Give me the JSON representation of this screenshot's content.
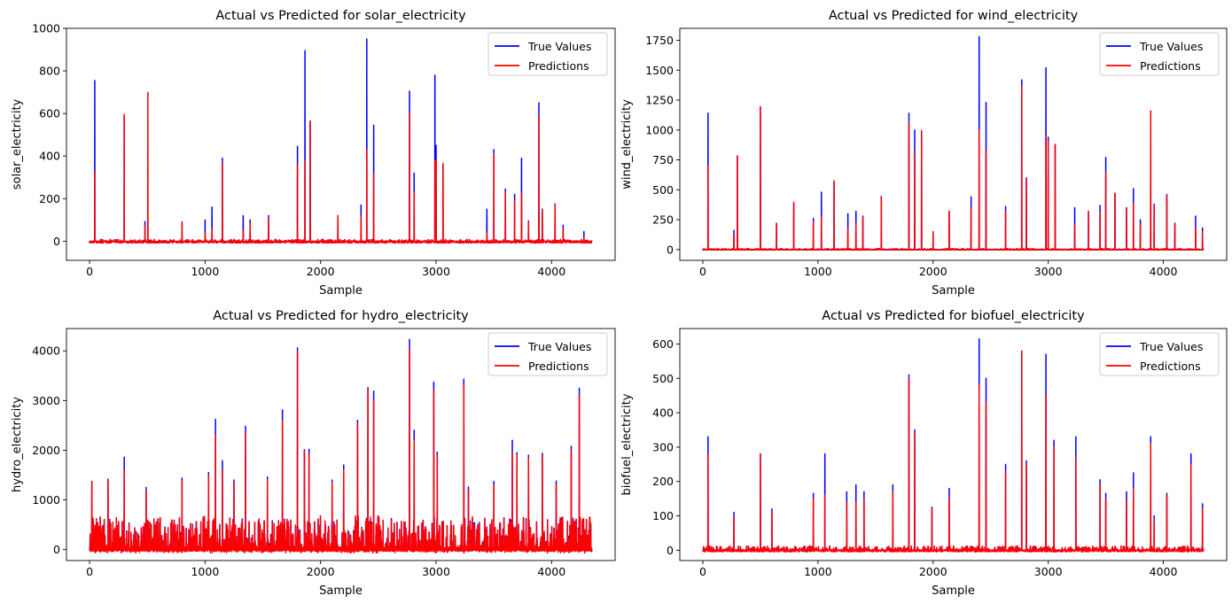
{
  "figure": {
    "colors": {
      "true": "#0000ff",
      "pred": "#ff0000",
      "axis": "#000000",
      "legend_border": "#cccccc"
    }
  },
  "chart_data": [
    {
      "type": "line",
      "title": "Actual vs Predicted for solar_electricity",
      "xlabel": "Sample",
      "ylabel": "solar_electricity",
      "xlim": [
        -200,
        4550
      ],
      "ylim": [
        -90,
        1000
      ],
      "xticks": [
        0,
        1000,
        2000,
        3000,
        4000
      ],
      "yticks": [
        0,
        200,
        400,
        600,
        800,
        1000
      ],
      "legend_position": "top-right",
      "grid": false,
      "n_samples": 4350,
      "noise": [
        -8,
        8
      ],
      "series": [
        {
          "name": "True Values",
          "color": "#0000ff"
        },
        {
          "name": "Predictions",
          "color": "#ff0000"
        }
      ],
      "spikes": [
        [
          45,
          755,
          330
        ],
        [
          300,
          590,
          595
        ],
        [
          480,
          92,
          70
        ],
        [
          505,
          0,
          700
        ],
        [
          800,
          90,
          90
        ],
        [
          1000,
          100,
          40
        ],
        [
          1060,
          160,
          60
        ],
        [
          1150,
          390,
          370
        ],
        [
          1330,
          120,
          50
        ],
        [
          1390,
          100,
          80
        ],
        [
          1550,
          120,
          110
        ],
        [
          1800,
          445,
          360
        ],
        [
          1865,
          895,
          380
        ],
        [
          1910,
          560,
          565
        ],
        [
          2150,
          120,
          120
        ],
        [
          2350,
          170,
          120
        ],
        [
          2400,
          950,
          430
        ],
        [
          2460,
          545,
          320
        ],
        [
          2770,
          705,
          600
        ],
        [
          2810,
          320,
          230
        ],
        [
          2990,
          780,
          380
        ],
        [
          3000,
          450,
          380
        ],
        [
          3060,
          360,
          365
        ],
        [
          3440,
          150,
          40
        ],
        [
          3500,
          430,
          410
        ],
        [
          3600,
          245,
          230
        ],
        [
          3680,
          220,
          190
        ],
        [
          3740,
          390,
          225
        ],
        [
          3800,
          95,
          90
        ],
        [
          3890,
          650,
          590
        ],
        [
          3920,
          150,
          145
        ],
        [
          4030,
          175,
          170
        ],
        [
          4100,
          75,
          60
        ],
        [
          4280,
          45,
          20
        ]
      ]
    },
    {
      "type": "line",
      "title": "Actual vs Predicted for wind_electricity",
      "xlabel": "Sample",
      "ylabel": "wind_electricity",
      "xlim": [
        -200,
        4550
      ],
      "ylim": [
        -90,
        1850
      ],
      "xticks": [
        0,
        1000,
        2000,
        3000,
        4000
      ],
      "yticks": [
        0,
        250,
        500,
        750,
        1000,
        1250,
        1500,
        1750
      ],
      "legend_position": "top-right",
      "grid": false,
      "n_samples": 4350,
      "noise": [
        -3,
        8
      ],
      "series": [
        {
          "name": "True Values",
          "color": "#0000ff"
        },
        {
          "name": "Predictions",
          "color": "#ff0000"
        }
      ],
      "spikes": [
        [
          45,
          1140,
          700
        ],
        [
          270,
          160,
          130
        ],
        [
          300,
          780,
          785
        ],
        [
          500,
          1190,
          1195
        ],
        [
          640,
          220,
          215
        ],
        [
          790,
          390,
          395
        ],
        [
          960,
          260,
          230
        ],
        [
          1030,
          480,
          270
        ],
        [
          1140,
          570,
          575
        ],
        [
          1260,
          300,
          180
        ],
        [
          1330,
          320,
          220
        ],
        [
          1390,
          280,
          275
        ],
        [
          1550,
          445,
          440
        ],
        [
          1790,
          1140,
          1060
        ],
        [
          1840,
          1000,
          800
        ],
        [
          1900,
          990,
          995
        ],
        [
          2000,
          150,
          150
        ],
        [
          2140,
          320,
          320
        ],
        [
          2330,
          440,
          350
        ],
        [
          2400,
          1780,
          1000
        ],
        [
          2460,
          1230,
          830
        ],
        [
          2630,
          360,
          320
        ],
        [
          2770,
          1420,
          1360
        ],
        [
          2810,
          600,
          590
        ],
        [
          2980,
          1520,
          950
        ],
        [
          3000,
          940,
          900
        ],
        [
          3060,
          870,
          880
        ],
        [
          3230,
          350,
          210
        ],
        [
          3350,
          320,
          320
        ],
        [
          3450,
          370,
          310
        ],
        [
          3500,
          770,
          640
        ],
        [
          3580,
          470,
          470
        ],
        [
          3680,
          350,
          340
        ],
        [
          3740,
          510,
          390
        ],
        [
          3800,
          250,
          210
        ],
        [
          3890,
          1150,
          1160
        ],
        [
          3920,
          380,
          370
        ],
        [
          4030,
          460,
          450
        ],
        [
          4100,
          220,
          210
        ],
        [
          4280,
          280,
          180
        ],
        [
          4340,
          180,
          150
        ]
      ]
    },
    {
      "type": "line",
      "title": "Actual vs Predicted for hydro_electricity",
      "xlabel": "Sample",
      "ylabel": "hydro_electricity",
      "xlim": [
        -200,
        4550
      ],
      "ylim": [
        -220,
        4450
      ],
      "xticks": [
        0,
        1000,
        2000,
        3000,
        4000
      ],
      "yticks": [
        0,
        1000,
        2000,
        3000,
        4000
      ],
      "legend_position": "top-right",
      "grid": false,
      "n_samples": 4350,
      "noise": [
        -30,
        650
      ],
      "series": [
        {
          "name": "True Values",
          "color": "#0000ff"
        },
        {
          "name": "Predictions",
          "color": "#ff0000"
        }
      ],
      "spikes": [
        [
          20,
          1370,
          1360
        ],
        [
          160,
          1420,
          1410
        ],
        [
          300,
          1860,
          1600
        ],
        [
          490,
          1250,
          1200
        ],
        [
          800,
          1440,
          1380
        ],
        [
          1030,
          1550,
          1500
        ],
        [
          1090,
          2620,
          2300
        ],
        [
          1150,
          1790,
          1600
        ],
        [
          1250,
          1400,
          1350
        ],
        [
          1350,
          2480,
          2350
        ],
        [
          1540,
          1460,
          1400
        ],
        [
          1670,
          2810,
          2600
        ],
        [
          1800,
          4060,
          4000
        ],
        [
          1860,
          2010,
          1980
        ],
        [
          1900,
          2020,
          1920
        ],
        [
          2100,
          1400,
          1350
        ],
        [
          2200,
          1700,
          1600
        ],
        [
          2320,
          2600,
          2550
        ],
        [
          2410,
          3260,
          3240
        ],
        [
          2460,
          3190,
          3000
        ],
        [
          2770,
          4230,
          4050
        ],
        [
          2810,
          2400,
          2200
        ],
        [
          2980,
          3370,
          3200
        ],
        [
          3010,
          1960,
          1900
        ],
        [
          3240,
          3430,
          3300
        ],
        [
          3280,
          1260,
          1200
        ],
        [
          3500,
          1370,
          1300
        ],
        [
          3660,
          2200,
          1950
        ],
        [
          3700,
          1950,
          1900
        ],
        [
          3800,
          1900,
          1850
        ],
        [
          3920,
          1940,
          1900
        ],
        [
          4040,
          1380,
          1300
        ],
        [
          4170,
          2080,
          2000
        ],
        [
          4240,
          3250,
          3100
        ]
      ]
    },
    {
      "type": "line",
      "title": "Actual vs Predicted for biofuel_electricity",
      "xlabel": "Sample",
      "ylabel": "biofuel_electricity",
      "xlim": [
        -200,
        4550
      ],
      "ylim": [
        -30,
        645
      ],
      "xticks": [
        0,
        1000,
        2000,
        3000,
        4000
      ],
      "yticks": [
        0,
        100,
        200,
        300,
        400,
        500,
        600
      ],
      "legend_position": "top-right",
      "grid": false,
      "n_samples": 4350,
      "noise": [
        -4,
        12
      ],
      "series": [
        {
          "name": "True Values",
          "color": "#0000ff"
        },
        {
          "name": "Predictions",
          "color": "#ff0000"
        }
      ],
      "spikes": [
        [
          45,
          330,
          280
        ],
        [
          270,
          110,
          95
        ],
        [
          500,
          280,
          280
        ],
        [
          600,
          120,
          110
        ],
        [
          960,
          165,
          150
        ],
        [
          1060,
          280,
          160
        ],
        [
          1250,
          170,
          140
        ],
        [
          1330,
          190,
          140
        ],
        [
          1400,
          170,
          150
        ],
        [
          1650,
          190,
          170
        ],
        [
          1790,
          510,
          500
        ],
        [
          1840,
          350,
          340
        ],
        [
          1990,
          125,
          120
        ],
        [
          2140,
          180,
          150
        ],
        [
          2400,
          615,
          480
        ],
        [
          2460,
          500,
          430
        ],
        [
          2630,
          250,
          230
        ],
        [
          2770,
          580,
          580
        ],
        [
          2810,
          260,
          250
        ],
        [
          2980,
          570,
          450
        ],
        [
          3050,
          320,
          300
        ],
        [
          3240,
          330,
          270
        ],
        [
          3450,
          205,
          190
        ],
        [
          3500,
          165,
          150
        ],
        [
          3680,
          170,
          145
        ],
        [
          3740,
          225,
          180
        ],
        [
          3890,
          330,
          310
        ],
        [
          3920,
          100,
          90
        ],
        [
          4030,
          165,
          160
        ],
        [
          4240,
          280,
          250
        ],
        [
          4340,
          135,
          120
        ]
      ]
    }
  ]
}
